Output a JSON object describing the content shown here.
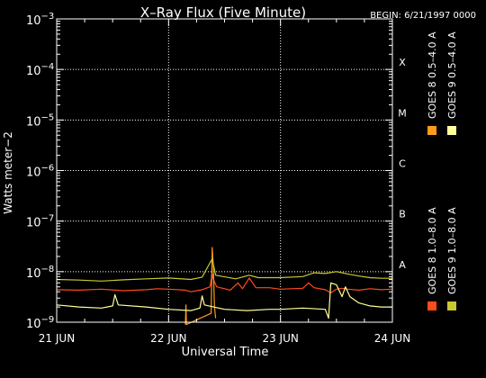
{
  "chart_data": {
    "type": "line",
    "title": "X–Ray Flux (Five Minute)",
    "begin_label": "BEGIN: 6/21/1997 0000",
    "xlabel": "Universal Time",
    "ylabel": "Watts meter−2",
    "yscale": "log",
    "ylim": [
      1e-09,
      0.001
    ],
    "y_ticks": [
      {
        "value": 1e-09,
        "base": "10",
        "exp": "−9"
      },
      {
        "value": 1e-08,
        "base": "10",
        "exp": "−8"
      },
      {
        "value": 1e-07,
        "base": "10",
        "exp": "−7"
      },
      {
        "value": 1e-06,
        "base": "10",
        "exp": "−6"
      },
      {
        "value": 1e-05,
        "base": "10",
        "exp": "−5"
      },
      {
        "value": 0.0001,
        "base": "10",
        "exp": "−4"
      },
      {
        "value": 0.001,
        "base": "10",
        "exp": "−3"
      }
    ],
    "x_ticks": [
      {
        "day": 0,
        "label": "21 JUN"
      },
      {
        "day": 1,
        "label": "22 JUN"
      },
      {
        "day": 2,
        "label": "23 JUN"
      },
      {
        "day": 3,
        "label": "24 JUN"
      }
    ],
    "xlim_days": [
      0,
      3
    ],
    "flare_classes": [
      {
        "label": "X",
        "value": 0.0001
      },
      {
        "label": "M",
        "value": 1e-05
      },
      {
        "label": "C",
        "value": 1e-06
      },
      {
        "label": "B",
        "value": 1e-07
      },
      {
        "label": "A",
        "value": 1e-08
      }
    ],
    "grid": true,
    "series": [
      {
        "name": "GOES 8 1.0–8.0 A",
        "color": "#ff4a1a",
        "points": [
          [
            0,
            4.4e-09
          ],
          [
            0.2,
            4.3e-09
          ],
          [
            0.4,
            4.5e-09
          ],
          [
            0.6,
            4.2e-09
          ],
          [
            0.8,
            4.4e-09
          ],
          [
            0.9,
            4.6e-09
          ],
          [
            1.0,
            4.5e-09
          ],
          [
            1.15,
            4.3e-09
          ],
          [
            1.2,
            4e-09
          ],
          [
            1.3,
            4.4e-09
          ],
          [
            1.37,
            5e-09
          ],
          [
            1.39,
            9e-09
          ],
          [
            1.4,
            7e-09
          ],
          [
            1.43,
            5e-09
          ],
          [
            1.5,
            4.6e-09
          ],
          [
            1.55,
            4.3e-09
          ],
          [
            1.62,
            6e-09
          ],
          [
            1.66,
            4.6e-09
          ],
          [
            1.72,
            7.5e-09
          ],
          [
            1.78,
            4.8e-09
          ],
          [
            1.9,
            4.8e-09
          ],
          [
            2.0,
            4.5e-09
          ],
          [
            2.1,
            4.6e-09
          ],
          [
            2.2,
            4.7e-09
          ],
          [
            2.25,
            6e-09
          ],
          [
            2.3,
            4.8e-09
          ],
          [
            2.4,
            4.4e-09
          ],
          [
            2.45,
            3.8e-09
          ],
          [
            2.5,
            4.5e-09
          ],
          [
            2.55,
            4.7e-09
          ],
          [
            2.6,
            4.5e-09
          ],
          [
            2.7,
            4.3e-09
          ],
          [
            2.8,
            4.6e-09
          ],
          [
            2.9,
            4.4e-09
          ],
          [
            3.0,
            4.5e-09
          ]
        ]
      },
      {
        "name": "GOES 8 0.5–4.0 A",
        "color": "#ff9a1a",
        "points": [
          [
            1.15,
            9e-10
          ],
          [
            1.155,
            2.2e-09
          ],
          [
            1.16,
            9e-10
          ],
          [
            1.38,
            1.5e-09
          ],
          [
            1.39,
            3e-08
          ],
          [
            1.4,
            1.2e-08
          ],
          [
            1.41,
            2e-09
          ],
          [
            1.42,
            1.2e-09
          ]
        ]
      },
      {
        "name": "GOES 9 0.5–4.0 A",
        "color": "#ffff99",
        "points": [
          [
            0,
            2.2e-09
          ],
          [
            0.2,
            2e-09
          ],
          [
            0.4,
            1.9e-09
          ],
          [
            0.5,
            2.1e-09
          ],
          [
            0.52,
            3.5e-09
          ],
          [
            0.55,
            2.2e-09
          ],
          [
            0.8,
            2e-09
          ],
          [
            1.0,
            1.8e-09
          ],
          [
            1.2,
            1.7e-09
          ],
          [
            1.28,
            1.9e-09
          ],
          [
            1.3,
            3.3e-09
          ],
          [
            1.32,
            2.2e-09
          ],
          [
            1.5,
            1.8e-09
          ],
          [
            1.7,
            1.7e-09
          ],
          [
            1.9,
            1.8e-09
          ],
          [
            2.0,
            1.8e-09
          ],
          [
            2.2,
            1.9e-09
          ],
          [
            2.4,
            1.8e-09
          ],
          [
            2.43,
            1.2e-09
          ],
          [
            2.45,
            6e-09
          ],
          [
            2.5,
            5.5e-09
          ],
          [
            2.55,
            3.2e-09
          ],
          [
            2.58,
            5e-09
          ],
          [
            2.62,
            3.2e-09
          ],
          [
            2.7,
            2.4e-09
          ],
          [
            2.8,
            2.1e-09
          ],
          [
            2.9,
            2e-09
          ],
          [
            3.0,
            2e-09
          ]
        ]
      },
      {
        "name": "GOES 9 1.0–8.0 A",
        "color": "#c8c830",
        "points": [
          [
            0,
            7e-09
          ],
          [
            0.2,
            6.8e-09
          ],
          [
            0.4,
            6.5e-09
          ],
          [
            0.6,
            6.9e-09
          ],
          [
            0.8,
            7.2e-09
          ],
          [
            1.0,
            7.5e-09
          ],
          [
            1.2,
            7e-09
          ],
          [
            1.3,
            7.8e-09
          ],
          [
            1.39,
            1.8e-08
          ],
          [
            1.42,
            8.5e-09
          ],
          [
            1.6,
            7.2e-09
          ],
          [
            1.72,
            8.5e-09
          ],
          [
            1.8,
            7.6e-09
          ],
          [
            2.0,
            7.6e-09
          ],
          [
            2.2,
            8e-09
          ],
          [
            2.3,
            9.5e-09
          ],
          [
            2.4,
            9.2e-09
          ],
          [
            2.5,
            1e-08
          ],
          [
            2.6,
            9e-09
          ],
          [
            2.7,
            8.2e-09
          ],
          [
            2.8,
            7.6e-09
          ],
          [
            2.9,
            7.4e-09
          ],
          [
            3.0,
            7.4e-09
          ]
        ]
      }
    ],
    "legend_placement": "right"
  }
}
